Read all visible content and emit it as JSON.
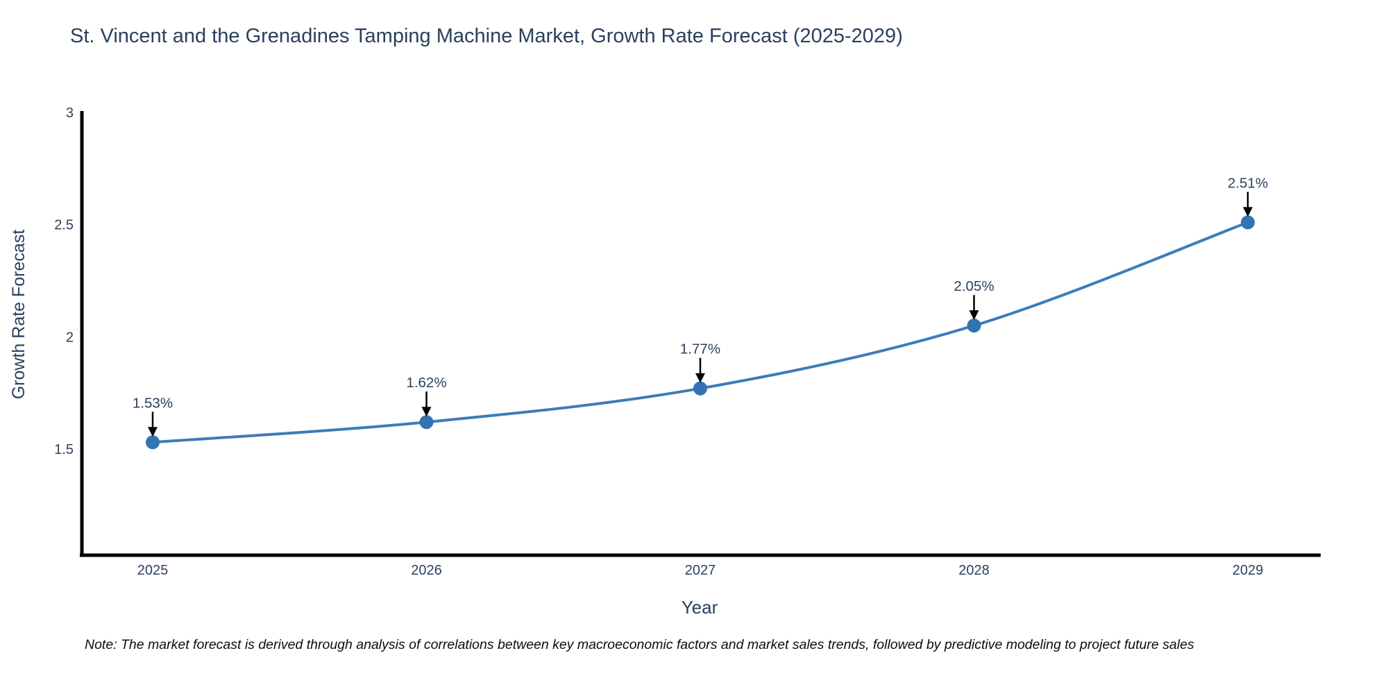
{
  "title": "St. Vincent and the Grenadines Tamping Machine Market, Growth Rate Forecast (2025-2029)",
  "note": "Note: The market forecast is derived through analysis of correlations between key macroeconomic factors and market sales trends, followed by predictive modeling to project future sales",
  "chart_data": {
    "type": "line",
    "x": [
      "2025",
      "2026",
      "2027",
      "2028",
      "2029"
    ],
    "series": [
      {
        "name": "Growth Rate Forecast",
        "values": [
          1.53,
          1.62,
          1.77,
          2.05,
          2.51
        ]
      }
    ],
    "point_labels": [
      "1.53%",
      "1.62%",
      "1.77%",
      "2.05%",
      "2.51%"
    ],
    "title": "St. Vincent and the Grenadines Tamping Machine Market, Growth Rate Forecast (2025-2029)",
    "xlabel": "Year",
    "ylabel": "Growth Rate Forecast",
    "ylim": [
      1.03,
      3.01
    ],
    "yticks": [
      "3",
      "2.5",
      "2",
      "1.5"
    ],
    "ytick_values": [
      3,
      2.5,
      2,
      1.5
    ],
    "grid": false,
    "legend_position": "none",
    "line_color": "#3d7cb8",
    "marker_color": "#3273b1",
    "arrow_color": "#000000",
    "axis_color": "#000000",
    "text_color": "#2a3f5f",
    "background_color": "#ffffff"
  }
}
